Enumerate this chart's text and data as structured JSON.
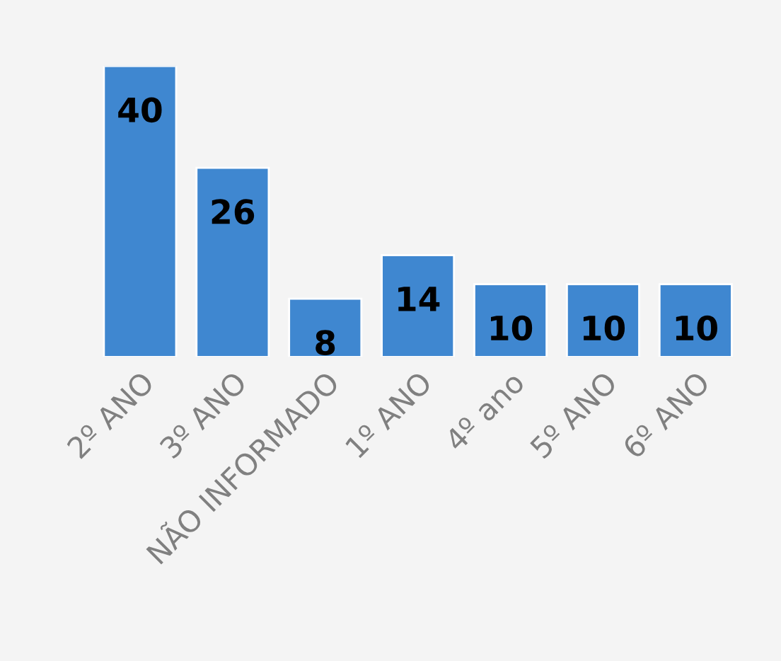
{
  "chart_data": {
    "type": "bar",
    "categories": [
      "2º ANO",
      "3º ANO",
      "NÃO INFORMADO",
      "1º ANO",
      "4º ano",
      "5º ANO",
      "6º ANO"
    ],
    "values": [
      40,
      26,
      8,
      14,
      10,
      10,
      10
    ],
    "color": "#3f87d0",
    "data_labels": true,
    "grid": false,
    "legend": false
  }
}
